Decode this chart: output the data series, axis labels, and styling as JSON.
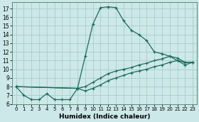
{
  "xlabel": "Humidex (Indice chaleur)",
  "background_color": "#cde8e8",
  "grid_color": "#aacccc",
  "line_color": "#1a6b5a",
  "xlim": [
    -0.5,
    23.5
  ],
  "ylim": [
    6.0,
    17.7
  ],
  "yticks": [
    6,
    7,
    8,
    9,
    10,
    11,
    12,
    13,
    14,
    15,
    16,
    17
  ],
  "xticks": [
    0,
    1,
    2,
    3,
    4,
    5,
    6,
    7,
    8,
    9,
    10,
    11,
    12,
    13,
    14,
    15,
    16,
    17,
    18,
    19,
    20,
    21,
    22,
    23
  ],
  "line1_x": [
    0,
    1,
    2,
    3,
    4,
    5,
    6,
    7,
    8,
    9,
    10,
    11,
    12,
    13,
    14,
    15,
    16,
    17,
    18,
    19,
    20,
    21,
    22,
    23
  ],
  "line1_y": [
    8.0,
    7.0,
    6.5,
    6.5,
    7.2,
    6.5,
    6.5,
    6.5,
    7.8,
    11.5,
    15.2,
    17.1,
    17.2,
    17.1,
    15.6,
    14.5,
    14.0,
    13.3,
    12.0,
    11.8,
    11.5,
    11.0,
    10.8,
    10.8
  ],
  "line2_x": [
    0,
    8,
    9,
    10,
    11,
    12,
    13,
    14,
    15,
    16,
    17,
    18,
    19,
    20,
    21,
    22,
    23
  ],
  "line2_y": [
    8.0,
    7.8,
    8.0,
    8.5,
    9.0,
    9.5,
    9.8,
    10.0,
    10.2,
    10.5,
    10.7,
    11.0,
    11.2,
    11.5,
    11.3,
    10.8,
    10.8
  ],
  "line3_x": [
    0,
    8,
    9,
    10,
    11,
    12,
    13,
    14,
    15,
    16,
    17,
    18,
    19,
    20,
    21,
    22,
    23
  ],
  "line3_y": [
    8.0,
    7.8,
    7.5,
    7.8,
    8.2,
    8.7,
    9.0,
    9.3,
    9.6,
    9.8,
    10.0,
    10.3,
    10.5,
    10.8,
    11.0,
    10.5,
    10.8
  ]
}
